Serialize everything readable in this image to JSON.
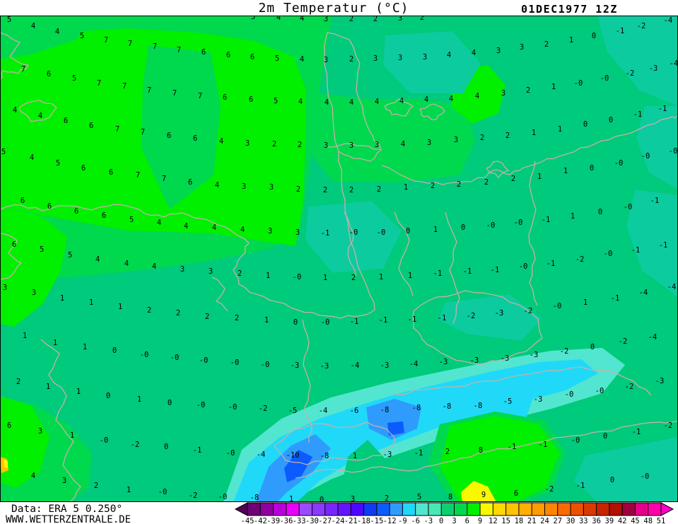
{
  "header": {
    "title": "2m Temperatur (°C)",
    "datetime": "01DEC1977 12Z"
  },
  "footer": {
    "line1": "Data: ERA 5 0.250°",
    "line2": "WWW.WETTERZENTRALE.DE"
  },
  "colorbar": {
    "tick_labels": [
      "-45",
      "-42",
      "-39",
      "-36",
      "-33",
      "-30",
      "-27",
      "-24",
      "-21",
      "-18",
      "-15",
      "-12",
      "-9",
      "-6",
      "-3",
      "0",
      "3",
      "6",
      "9",
      "12",
      "15",
      "18",
      "21",
      "24",
      "27",
      "30",
      "33",
      "36",
      "39",
      "42",
      "45",
      "48",
      "51"
    ],
    "segment_colors": [
      "#6f0078",
      "#8f00a0",
      "#b800d8",
      "#e800ff",
      "#9b4bff",
      "#8a39ff",
      "#7726ff",
      "#6315ff",
      "#4d06ff",
      "#0f3cf2",
      "#0a5cff",
      "#2f9bfd",
      "#20d9f8",
      "#52e6d0",
      "#46e8b6",
      "#0ecf70",
      "#00d84e",
      "#00f000",
      "#f8f800",
      "#ffd800",
      "#ffc400",
      "#ffb000",
      "#ff9c00",
      "#ff8600",
      "#f96b00",
      "#ea5200",
      "#da3900",
      "#c82300",
      "#b21000",
      "#a00040",
      "#e4008c",
      "#ff00aa"
    ],
    "left_arrow_color": "#500057",
    "right_arrow_color": "#ff00c8"
  },
  "map": {
    "palette": {
      "bright": "#00f000",
      "green": "#00d84e",
      "jade": "#00ca7b",
      "teal": "#0ccb9e",
      "turquoise": "#52e6d0",
      "cyan": "#20d9f8",
      "blue": "#2f9bfd",
      "royal": "#0a5cff",
      "yellow": "#f8f800",
      "orange": "#ffc400",
      "border_line": "#c9afa9",
      "frame": "#000000"
    },
    "temps": [
      [
        358,
        24,
        "5"
      ],
      [
        394,
        25,
        "4"
      ],
      [
        427,
        26,
        "4"
      ],
      [
        461,
        27,
        "3"
      ],
      [
        497,
        27,
        "2"
      ],
      [
        531,
        27,
        "2"
      ],
      [
        566,
        26,
        "3"
      ],
      [
        597,
        25,
        "2"
      ],
      [
        13,
        28,
        "5"
      ],
      [
        47,
        37,
        "4"
      ],
      [
        81,
        45,
        "4"
      ],
      [
        116,
        51,
        "5"
      ],
      [
        150,
        57,
        "7"
      ],
      [
        184,
        62,
        "7"
      ],
      [
        219,
        66,
        "7"
      ],
      [
        253,
        71,
        "7"
      ],
      [
        288,
        74,
        "6"
      ],
      [
        323,
        78,
        "6"
      ],
      [
        357,
        81,
        "6"
      ],
      [
        392,
        83,
        "5"
      ],
      [
        427,
        84,
        "4"
      ],
      [
        461,
        85,
        "3"
      ],
      [
        497,
        84,
        "2"
      ],
      [
        531,
        83,
        "3"
      ],
      [
        566,
        82,
        "3"
      ],
      [
        601,
        81,
        "3"
      ],
      [
        635,
        78,
        "4"
      ],
      [
        670,
        75,
        "4"
      ],
      [
        705,
        72,
        "3"
      ],
      [
        738,
        67,
        "3"
      ],
      [
        773,
        63,
        "2"
      ],
      [
        808,
        57,
        "1"
      ],
      [
        840,
        51,
        "0"
      ],
      [
        877,
        44,
        "-1"
      ],
      [
        907,
        37,
        "-2"
      ],
      [
        945,
        29,
        "-4"
      ],
      [
        33,
        98,
        "7"
      ],
      [
        69,
        105,
        "6"
      ],
      [
        105,
        111,
        "5"
      ],
      [
        140,
        118,
        "7"
      ],
      [
        176,
        122,
        "7"
      ],
      [
        211,
        128,
        "7"
      ],
      [
        247,
        132,
        "7"
      ],
      [
        283,
        136,
        "7"
      ],
      [
        318,
        138,
        "6"
      ],
      [
        355,
        141,
        "6"
      ],
      [
        390,
        143,
        "5"
      ],
      [
        425,
        144,
        "4"
      ],
      [
        462,
        145,
        "4"
      ],
      [
        497,
        145,
        "4"
      ],
      [
        533,
        144,
        "4"
      ],
      [
        568,
        143,
        "4"
      ],
      [
        603,
        141,
        "4"
      ],
      [
        638,
        140,
        "4"
      ],
      [
        675,
        136,
        "4"
      ],
      [
        712,
        132,
        "3"
      ],
      [
        747,
        128,
        "2"
      ],
      [
        783,
        123,
        "1"
      ],
      [
        818,
        118,
        "-0"
      ],
      [
        855,
        111,
        "-0"
      ],
      [
        891,
        104,
        "-2"
      ],
      [
        924,
        97,
        "-3"
      ],
      [
        953,
        90,
        "-4"
      ],
      [
        21,
        156,
        "4"
      ],
      [
        57,
        164,
        "4"
      ],
      [
        93,
        171,
        "6"
      ],
      [
        129,
        178,
        "6"
      ],
      [
        166,
        183,
        "7"
      ],
      [
        202,
        187,
        "7"
      ],
      [
        239,
        192,
        "6"
      ],
      [
        276,
        196,
        "6"
      ],
      [
        313,
        200,
        "4"
      ],
      [
        350,
        203,
        "3"
      ],
      [
        388,
        204,
        "2"
      ],
      [
        424,
        205,
        "2"
      ],
      [
        461,
        206,
        "3"
      ],
      [
        497,
        206,
        "3"
      ],
      [
        533,
        205,
        "3"
      ],
      [
        570,
        204,
        "4"
      ],
      [
        607,
        202,
        "3"
      ],
      [
        645,
        198,
        "3"
      ],
      [
        682,
        195,
        "2"
      ],
      [
        718,
        192,
        "2"
      ],
      [
        755,
        188,
        "1"
      ],
      [
        792,
        183,
        "1"
      ],
      [
        828,
        176,
        "0"
      ],
      [
        864,
        170,
        "0"
      ],
      [
        902,
        162,
        "-1"
      ],
      [
        937,
        154,
        "-1"
      ],
      [
        5,
        215,
        "5"
      ],
      [
        45,
        223,
        "4"
      ],
      [
        82,
        231,
        "5"
      ],
      [
        118,
        238,
        "6"
      ],
      [
        157,
        244,
        "6"
      ],
      [
        195,
        248,
        "7"
      ],
      [
        232,
        253,
        "7"
      ],
      [
        269,
        258,
        "6"
      ],
      [
        307,
        262,
        "4"
      ],
      [
        345,
        264,
        "3"
      ],
      [
        384,
        265,
        "3"
      ],
      [
        422,
        268,
        "2"
      ],
      [
        460,
        269,
        "2"
      ],
      [
        497,
        269,
        "2"
      ],
      [
        536,
        268,
        "2"
      ],
      [
        574,
        265,
        "1"
      ],
      [
        612,
        263,
        "2"
      ],
      [
        649,
        261,
        "2"
      ],
      [
        688,
        258,
        "2"
      ],
      [
        726,
        253,
        "2"
      ],
      [
        763,
        250,
        "1"
      ],
      [
        800,
        242,
        "1"
      ],
      [
        837,
        238,
        "0"
      ],
      [
        875,
        231,
        "-0"
      ],
      [
        913,
        221,
        "-0"
      ],
      [
        952,
        214,
        "-0"
      ],
      [
        32,
        284,
        "6"
      ],
      [
        70,
        292,
        "6"
      ],
      [
        108,
        299,
        "6"
      ],
      [
        147,
        305,
        "6"
      ],
      [
        186,
        311,
        "5"
      ],
      [
        225,
        315,
        "4"
      ],
      [
        263,
        320,
        "4"
      ],
      [
        303,
        322,
        "4"
      ],
      [
        343,
        325,
        "4"
      ],
      [
        382,
        327,
        "3"
      ],
      [
        421,
        329,
        "3"
      ],
      [
        460,
        330,
        "-1"
      ],
      [
        500,
        329,
        "-0"
      ],
      [
        539,
        329,
        "-0"
      ],
      [
        577,
        327,
        "0"
      ],
      [
        616,
        325,
        "1"
      ],
      [
        655,
        322,
        "0"
      ],
      [
        694,
        319,
        "-0"
      ],
      [
        733,
        315,
        "-0"
      ],
      [
        772,
        311,
        "-1"
      ],
      [
        810,
        306,
        "1"
      ],
      [
        849,
        300,
        "0"
      ],
      [
        888,
        293,
        "-0"
      ],
      [
        926,
        284,
        "-1"
      ],
      [
        20,
        346,
        "6"
      ],
      [
        59,
        353,
        "5"
      ],
      [
        99,
        361,
        "5"
      ],
      [
        138,
        367,
        "4"
      ],
      [
        179,
        373,
        "4"
      ],
      [
        218,
        377,
        "4"
      ],
      [
        258,
        381,
        "3"
      ],
      [
        298,
        384,
        "3"
      ],
      [
        339,
        387,
        "2"
      ],
      [
        379,
        390,
        "1"
      ],
      [
        420,
        392,
        "-0"
      ],
      [
        460,
        393,
        "1"
      ],
      [
        500,
        393,
        "2"
      ],
      [
        539,
        392,
        "1"
      ],
      [
        580,
        390,
        "1"
      ],
      [
        619,
        387,
        "-1"
      ],
      [
        661,
        384,
        "-1"
      ],
      [
        700,
        382,
        "-1"
      ],
      [
        740,
        377,
        "-0"
      ],
      [
        779,
        373,
        "-1"
      ],
      [
        820,
        367,
        "-2"
      ],
      [
        860,
        359,
        "-0"
      ],
      [
        899,
        354,
        "-1"
      ],
      [
        938,
        347,
        "-1"
      ],
      [
        7,
        407,
        "3"
      ],
      [
        48,
        414,
        "3"
      ],
      [
        88,
        422,
        "1"
      ],
      [
        129,
        428,
        "1"
      ],
      [
        170,
        434,
        "1"
      ],
      [
        211,
        439,
        "2"
      ],
      [
        252,
        443,
        "2"
      ],
      [
        293,
        448,
        "2"
      ],
      [
        335,
        450,
        "2"
      ],
      [
        377,
        453,
        "1"
      ],
      [
        418,
        456,
        "0"
      ],
      [
        460,
        456,
        "-0"
      ],
      [
        501,
        455,
        "-1"
      ],
      [
        542,
        453,
        "-1"
      ],
      [
        583,
        452,
        "-1"
      ],
      [
        625,
        450,
        "-1"
      ],
      [
        666,
        447,
        "-2"
      ],
      [
        706,
        443,
        "-3"
      ],
      [
        747,
        440,
        "-2"
      ],
      [
        788,
        433,
        "-0"
      ],
      [
        828,
        428,
        "1"
      ],
      [
        870,
        422,
        "-1"
      ],
      [
        910,
        414,
        "-4"
      ],
      [
        950,
        406,
        "-4"
      ],
      [
        35,
        475,
        "1"
      ],
      [
        78,
        485,
        "1"
      ],
      [
        120,
        491,
        "1"
      ],
      [
        162,
        496,
        "0"
      ],
      [
        204,
        502,
        "-0"
      ],
      [
        247,
        506,
        "-0"
      ],
      [
        288,
        510,
        "-0"
      ],
      [
        332,
        513,
        "-0"
      ],
      [
        375,
        516,
        "-0"
      ],
      [
        417,
        517,
        "-3"
      ],
      [
        459,
        518,
        "-3"
      ],
      [
        502,
        517,
        "-4"
      ],
      [
        544,
        517,
        "-3"
      ],
      [
        585,
        515,
        "-4"
      ],
      [
        627,
        512,
        "-3"
      ],
      [
        671,
        510,
        "-3"
      ],
      [
        714,
        507,
        "-3"
      ],
      [
        755,
        502,
        "-3"
      ],
      [
        798,
        497,
        "-2"
      ],
      [
        838,
        491,
        "0"
      ],
      [
        881,
        483,
        "-2"
      ],
      [
        923,
        477,
        "-4"
      ],
      [
        26,
        540,
        "2"
      ],
      [
        68,
        547,
        "1"
      ],
      [
        111,
        554,
        "1"
      ],
      [
        153,
        560,
        "0"
      ],
      [
        197,
        565,
        "1"
      ],
      [
        240,
        570,
        "0"
      ],
      [
        284,
        573,
        "-0"
      ],
      [
        329,
        576,
        "-0"
      ],
      [
        372,
        578,
        "-2"
      ],
      [
        414,
        581,
        "-5"
      ],
      [
        457,
        581,
        "-4"
      ],
      [
        501,
        581,
        "-6"
      ],
      [
        544,
        580,
        "-8"
      ],
      [
        589,
        577,
        "-8"
      ],
      [
        632,
        575,
        "-8"
      ],
      [
        676,
        574,
        "-8"
      ],
      [
        718,
        568,
        "-5"
      ],
      [
        761,
        565,
        "-3"
      ],
      [
        805,
        558,
        "-0"
      ],
      [
        848,
        553,
        "-0"
      ],
      [
        890,
        547,
        "-2"
      ],
      [
        933,
        539,
        "-3"
      ],
      [
        13,
        602,
        "6"
      ],
      [
        57,
        610,
        "3"
      ],
      [
        102,
        616,
        "1"
      ],
      [
        147,
        623,
        "-0"
      ],
      [
        191,
        629,
        "-2"
      ],
      [
        235,
        632,
        "0"
      ],
      [
        279,
        637,
        "-1"
      ],
      [
        326,
        641,
        "-0"
      ],
      [
        369,
        643,
        "-4"
      ],
      [
        414,
        644,
        "-10"
      ],
      [
        459,
        645,
        "-8"
      ],
      [
        502,
        645,
        "1"
      ],
      [
        548,
        643,
        "-3"
      ],
      [
        592,
        641,
        "-1"
      ],
      [
        633,
        639,
        "2"
      ],
      [
        680,
        637,
        "8"
      ],
      [
        724,
        632,
        "-1"
      ],
      [
        768,
        629,
        "-1"
      ],
      [
        814,
        623,
        "-0"
      ],
      [
        856,
        617,
        "0"
      ],
      [
        900,
        611,
        "-1"
      ],
      [
        945,
        602,
        "-2"
      ],
      [
        47,
        673,
        "4"
      ],
      [
        91,
        680,
        "3"
      ],
      [
        136,
        687,
        "2"
      ],
      [
        182,
        693,
        "1"
      ],
      [
        230,
        696,
        "-0"
      ],
      [
        273,
        701,
        "-2"
      ],
      [
        315,
        703,
        "-0"
      ],
      [
        360,
        704,
        "-8"
      ],
      [
        412,
        706,
        "1"
      ],
      [
        455,
        707,
        "0"
      ],
      [
        499,
        706,
        "3"
      ],
      [
        547,
        705,
        "2"
      ],
      [
        593,
        703,
        "5"
      ],
      [
        637,
        703,
        "8"
      ],
      [
        684,
        700,
        "9"
      ],
      [
        730,
        698,
        "6"
      ],
      [
        777,
        692,
        "-2"
      ],
      [
        821,
        687,
        "-1"
      ],
      [
        866,
        679,
        "0"
      ],
      [
        912,
        674,
        "-0"
      ]
    ]
  }
}
